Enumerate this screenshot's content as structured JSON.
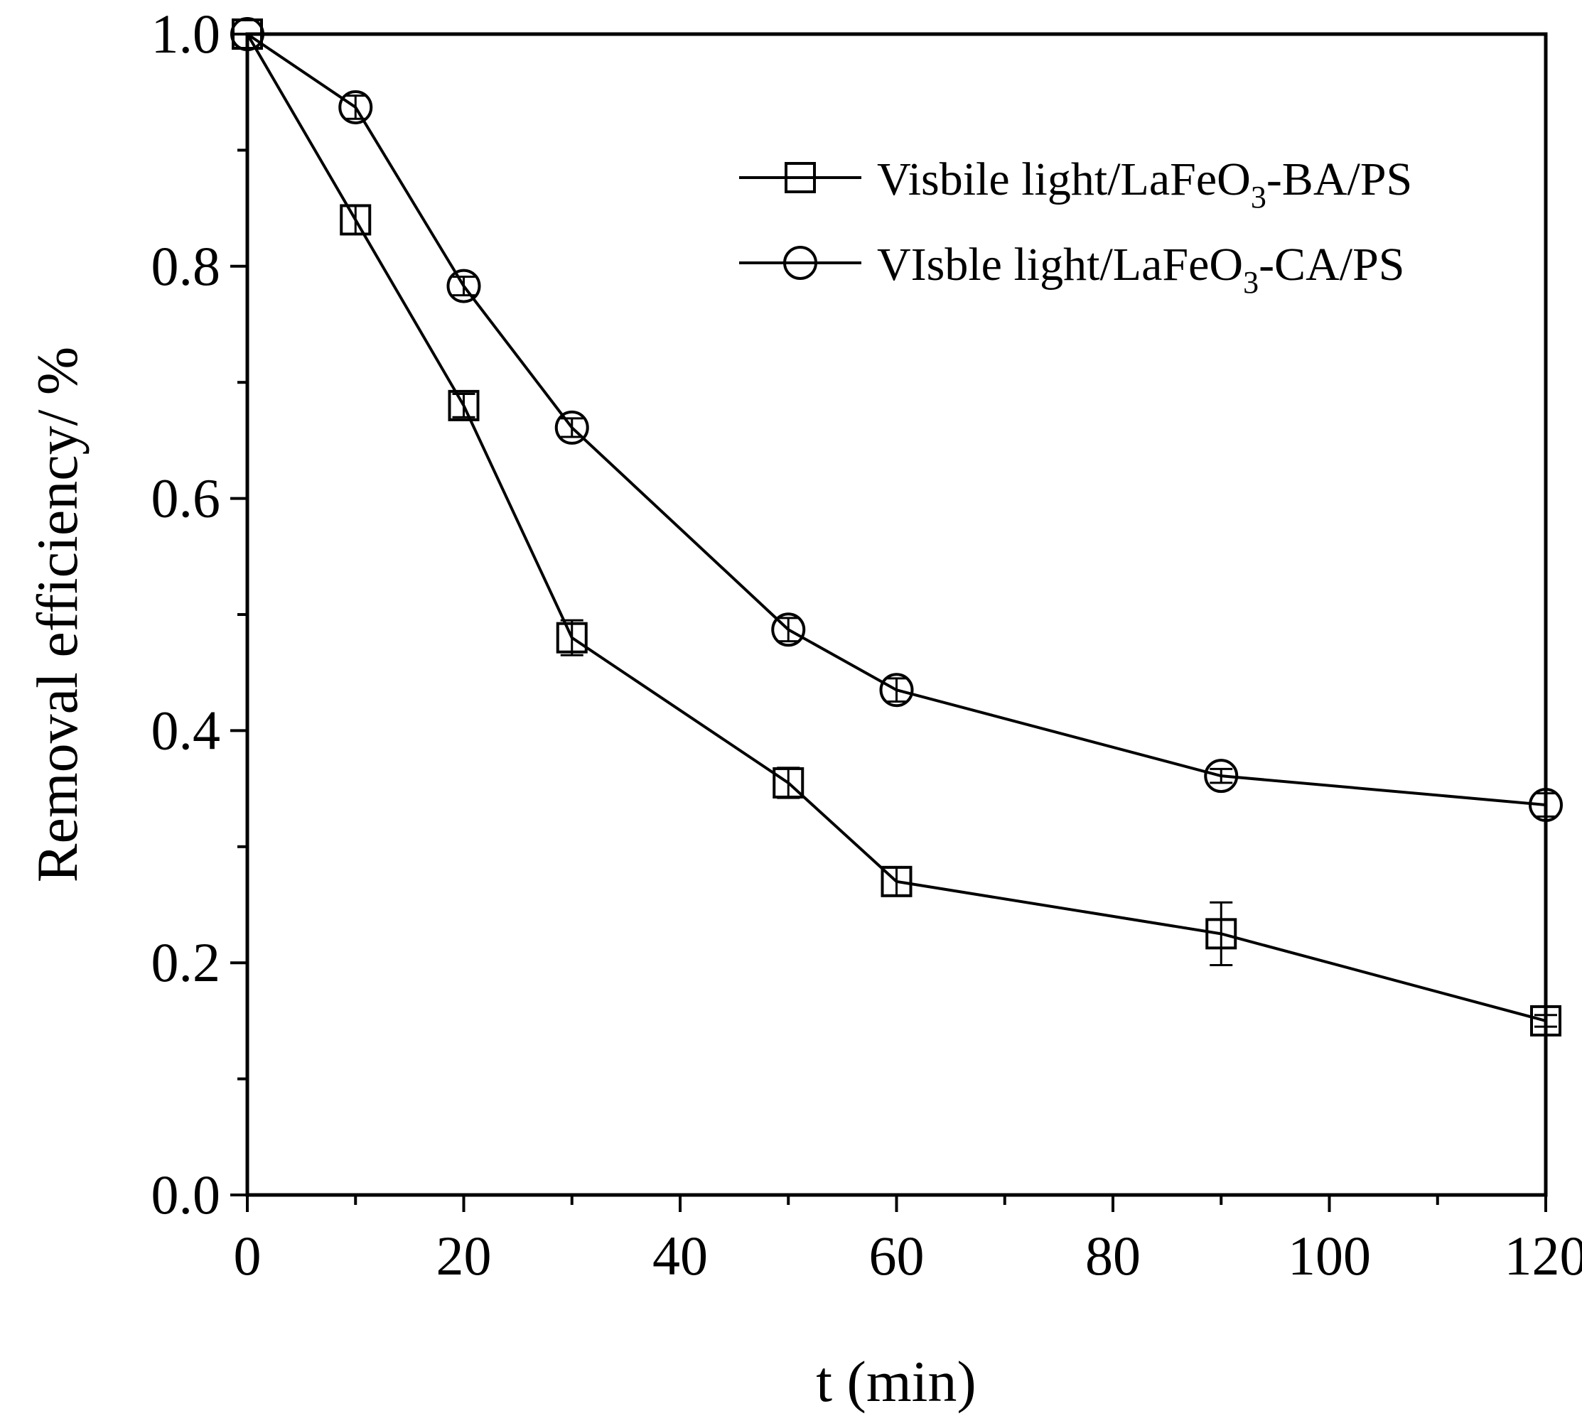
{
  "chart_data": {
    "type": "line",
    "xlabel": "t (min)",
    "ylabel": "Removal efficiency/ %",
    "xlim": [
      0,
      120
    ],
    "ylim": [
      0,
      1.0
    ],
    "x_ticks": [
      "0",
      "20",
      "40",
      "60",
      "80",
      "100",
      "120"
    ],
    "y_ticks": [
      "0.0",
      "0.2",
      "0.4",
      "0.6",
      "0.8",
      "1.0"
    ],
    "x_minor_step": 10,
    "y_minor_step": 0.1,
    "grid": false,
    "legend_position": "top-right",
    "series": [
      {
        "name": "Visbile light/LaFeO3-BA/PS",
        "legend": {
          "prefix": "Visbile light/LaFeO",
          "sub": "3",
          "suffix": "-BA/PS"
        },
        "marker": "square",
        "x": [
          0,
          10,
          20,
          30,
          50,
          60,
          90,
          120
        ],
        "y": [
          1.0,
          0.84,
          0.68,
          0.48,
          0.355,
          0.27,
          0.225,
          0.15
        ],
        "err": [
          0.0,
          0.012,
          0.01,
          0.015,
          0.013,
          0.012,
          0.027,
          0.005
        ]
      },
      {
        "name": "VIsble light/LaFeO3-CA/PS",
        "legend": {
          "prefix": "VIsble light/LaFeO",
          "sub": "3",
          "suffix": "-CA/PS"
        },
        "marker": "circle",
        "x": [
          0,
          10,
          20,
          30,
          50,
          60,
          90,
          120
        ],
        "y": [
          1.0,
          0.937,
          0.783,
          0.661,
          0.487,
          0.435,
          0.361,
          0.336
        ],
        "err": [
          0.0,
          0.01,
          0.008,
          0.008,
          0.01,
          0.01,
          0.006,
          0.01
        ]
      }
    ]
  }
}
